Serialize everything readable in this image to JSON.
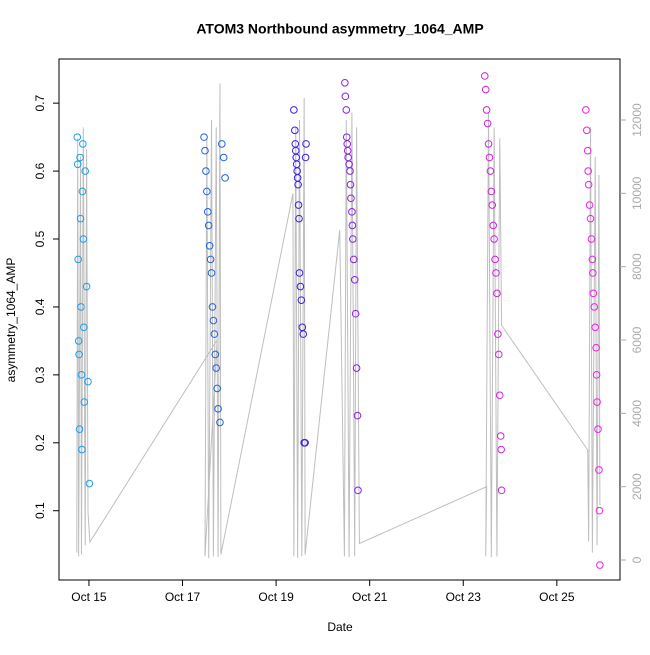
{
  "chart_data": {
    "type": "scatter",
    "title": "ATOM3 Northbound asymmetry_1064_AMP",
    "x_label": "Date",
    "y_label": "asymmetry_1064_AMP",
    "xlim": [
      14.36,
      26.35
    ],
    "xticks": [
      {
        "value": 15,
        "label": "Oct 15"
      },
      {
        "value": 17,
        "label": "Oct 17"
      },
      {
        "value": 19,
        "label": "Oct 19"
      },
      {
        "value": 21,
        "label": "Oct 21"
      },
      {
        "value": 23,
        "label": "Oct 23"
      },
      {
        "value": 25,
        "label": "Oct 25"
      }
    ],
    "ylim": [
      -0.002,
      0.765
    ],
    "yticks": [
      0.1,
      0.2,
      0.3,
      0.4,
      0.5,
      0.6,
      0.7
    ],
    "y2lim": [
      -545,
      13664
    ],
    "y2ticks": [
      0,
      2000,
      4000,
      6000,
      8000,
      10000,
      12000
    ],
    "series": [
      {
        "color": "#1e9ee8",
        "x": [
          14.75,
          14.76,
          14.77,
          14.78,
          14.79,
          14.8,
          14.81,
          14.82,
          14.83,
          14.84,
          14.85,
          14.86,
          14.87,
          14.88,
          14.89,
          14.9,
          14.92,
          14.95,
          14.98,
          15.01
        ],
        "values": [
          0.65,
          0.61,
          0.47,
          0.35,
          0.33,
          0.22,
          0.62,
          0.53,
          0.4,
          0.3,
          0.19,
          0.57,
          0.64,
          0.5,
          0.37,
          0.26,
          0.6,
          0.43,
          0.29,
          0.14
        ]
      },
      {
        "color": "#2262e8",
        "x": [
          17.46,
          17.48,
          17.5,
          17.52,
          17.54,
          17.56,
          17.58,
          17.6,
          17.62,
          17.64,
          17.66,
          17.68,
          17.7,
          17.72,
          17.74,
          17.76,
          17.8,
          17.84,
          17.88,
          17.91
        ],
        "values": [
          0.65,
          0.63,
          0.6,
          0.57,
          0.54,
          0.52,
          0.49,
          0.47,
          0.45,
          0.4,
          0.38,
          0.36,
          0.33,
          0.31,
          0.28,
          0.25,
          0.23,
          0.64,
          0.62,
          0.59
        ]
      },
      {
        "color": "#3a22e6",
        "x": [
          19.38,
          19.4,
          19.41,
          19.42,
          19.43,
          19.44,
          19.45,
          19.46,
          19.47,
          19.48,
          19.49,
          19.5,
          19.52,
          19.54,
          19.56,
          19.58,
          19.6,
          19.62,
          19.63,
          19.64
        ],
        "values": [
          0.69,
          0.66,
          0.64,
          0.63,
          0.62,
          0.61,
          0.6,
          0.59,
          0.58,
          0.55,
          0.53,
          0.45,
          0.43,
          0.41,
          0.37,
          0.36,
          0.2,
          0.2,
          0.62,
          0.64
        ]
      },
      {
        "color": "#8a22e6",
        "x": [
          20.47,
          20.48,
          20.5,
          20.51,
          20.52,
          20.53,
          20.54,
          20.56,
          20.58,
          20.59,
          20.6,
          20.62,
          20.63,
          20.64,
          20.66,
          20.68,
          20.7,
          20.72,
          20.74,
          20.75
        ],
        "values": [
          0.73,
          0.71,
          0.69,
          0.65,
          0.64,
          0.63,
          0.62,
          0.61,
          0.6,
          0.58,
          0.56,
          0.54,
          0.52,
          0.5,
          0.47,
          0.44,
          0.39,
          0.31,
          0.24,
          0.13
        ]
      },
      {
        "color": "#d022e0",
        "x": [
          23.46,
          23.48,
          23.5,
          23.52,
          23.54,
          23.56,
          23.58,
          23.6,
          23.62,
          23.64,
          23.66,
          23.68,
          23.7,
          23.72,
          23.74,
          23.76,
          23.78,
          23.8,
          23.81,
          23.82
        ],
        "values": [
          0.74,
          0.72,
          0.69,
          0.67,
          0.64,
          0.62,
          0.6,
          0.57,
          0.55,
          0.52,
          0.5,
          0.47,
          0.45,
          0.42,
          0.36,
          0.33,
          0.27,
          0.21,
          0.19,
          0.13
        ]
      },
      {
        "color": "#f022e8",
        "x": [
          25.62,
          25.64,
          25.66,
          25.67,
          25.68,
          25.7,
          25.72,
          25.74,
          25.76,
          25.77,
          25.78,
          25.8,
          25.82,
          25.84,
          25.85,
          25.86,
          25.88,
          25.9,
          25.91,
          25.92
        ],
        "values": [
          0.69,
          0.66,
          0.63,
          0.6,
          0.58,
          0.55,
          0.53,
          0.5,
          0.47,
          0.45,
          0.42,
          0.4,
          0.37,
          0.34,
          0.3,
          0.26,
          0.22,
          0.16,
          0.1,
          0.02
        ]
      },
      {
        "type": "line",
        "axis": "y2",
        "color": "#bebebe",
        "x": [
          14.74,
          14.76,
          14.78,
          14.82,
          14.84,
          14.88,
          14.92,
          14.95,
          14.98,
          15.02,
          17.74,
          17.48,
          17.52,
          17.56,
          17.62,
          17.66,
          17.72,
          17.76,
          17.8,
          17.82,
          19.36,
          19.38,
          19.42,
          19.46,
          19.5,
          19.55,
          19.6,
          19.62,
          20.36,
          20.46,
          20.5,
          20.56,
          20.62,
          20.68,
          20.72,
          20.78,
          23.5,
          23.48,
          23.54,
          23.6,
          23.66,
          23.72,
          23.78,
          23.82,
          25.66,
          25.68,
          25.72,
          25.76,
          25.82,
          25.86,
          25.9,
          25.92
        ],
        "values": [
          200,
          11500,
          100,
          11000,
          150,
          11800,
          400,
          11200,
          1300,
          490,
          6000,
          100,
          11500,
          50,
          12000,
          100,
          11800,
          80,
          13000,
          150,
          10000,
          100,
          11800,
          60,
          12000,
          100,
          12600,
          150,
          9000,
          100,
          12000,
          80,
          12200,
          100,
          11800,
          450,
          2000,
          100,
          12200,
          80,
          11800,
          100,
          11500,
          6400,
          3000,
          500,
          11800,
          200,
          11000,
          400,
          10500,
          1500
        ]
      }
    ]
  }
}
